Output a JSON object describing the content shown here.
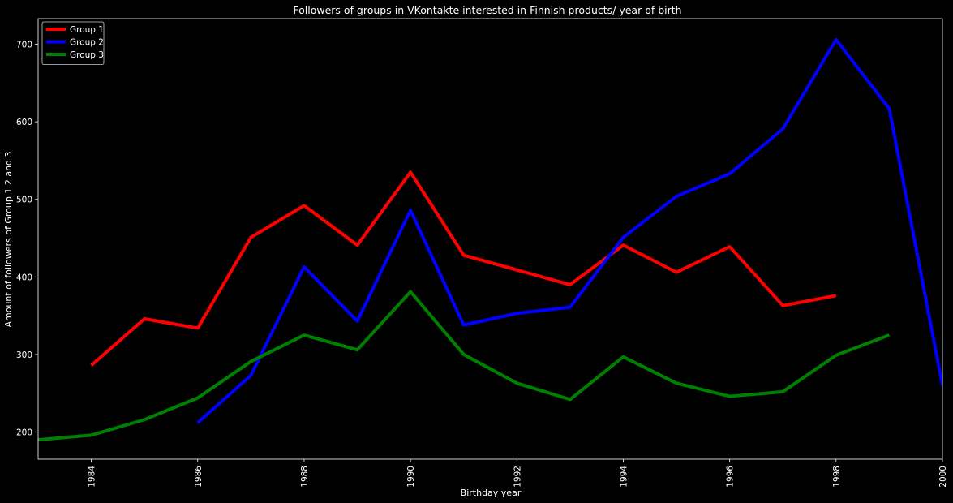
{
  "chart_data": {
    "type": "line",
    "title": "Followers of groups in VKontakte interested in Finnish products/ year of birth",
    "xlabel": "Birthday year",
    "ylabel": "Amount of followers of Group 1 2 and 3",
    "xlim": [
      1983,
      2000
    ],
    "ylim": [
      165,
      733
    ],
    "xticks": [
      1984,
      1986,
      1988,
      1990,
      1992,
      1994,
      1996,
      1998,
      2000
    ],
    "yticks": [
      200,
      300,
      400,
      500,
      600,
      700
    ],
    "grid": false,
    "legend_position": "top-left",
    "series": [
      {
        "name": "Group 1",
        "color": "#ff0000",
        "x": [
          1984,
          1985,
          1986,
          1987,
          1988,
          1989,
          1990,
          1991,
          1992,
          1993,
          1994,
          1995,
          1996,
          1997,
          1998
        ],
        "values": [
          286,
          346,
          334,
          451,
          492,
          441,
          535,
          428,
          409,
          390,
          441,
          406,
          439,
          363,
          376
        ]
      },
      {
        "name": "Group 2",
        "color": "#0000ff",
        "x": [
          1986,
          1987,
          1988,
          1989,
          1990,
          1991,
          1992,
          1993,
          1994,
          1995,
          1996,
          1997,
          1998,
          1999,
          2000
        ],
        "values": [
          212,
          273,
          413,
          343,
          486,
          338,
          353,
          361,
          451,
          504,
          533,
          591,
          706,
          617,
          260
        ]
      },
      {
        "name": "Group 3",
        "color": "#008000",
        "x": [
          1983,
          1984,
          1985,
          1986,
          1987,
          1988,
          1989,
          1990,
          1991,
          1992,
          1993,
          1994,
          1995,
          1996,
          1997,
          1998,
          1999
        ],
        "values": [
          190,
          196,
          216,
          244,
          291,
          325,
          306,
          381,
          300,
          263,
          242,
          297,
          263,
          246,
          252,
          299,
          325
        ]
      }
    ]
  }
}
